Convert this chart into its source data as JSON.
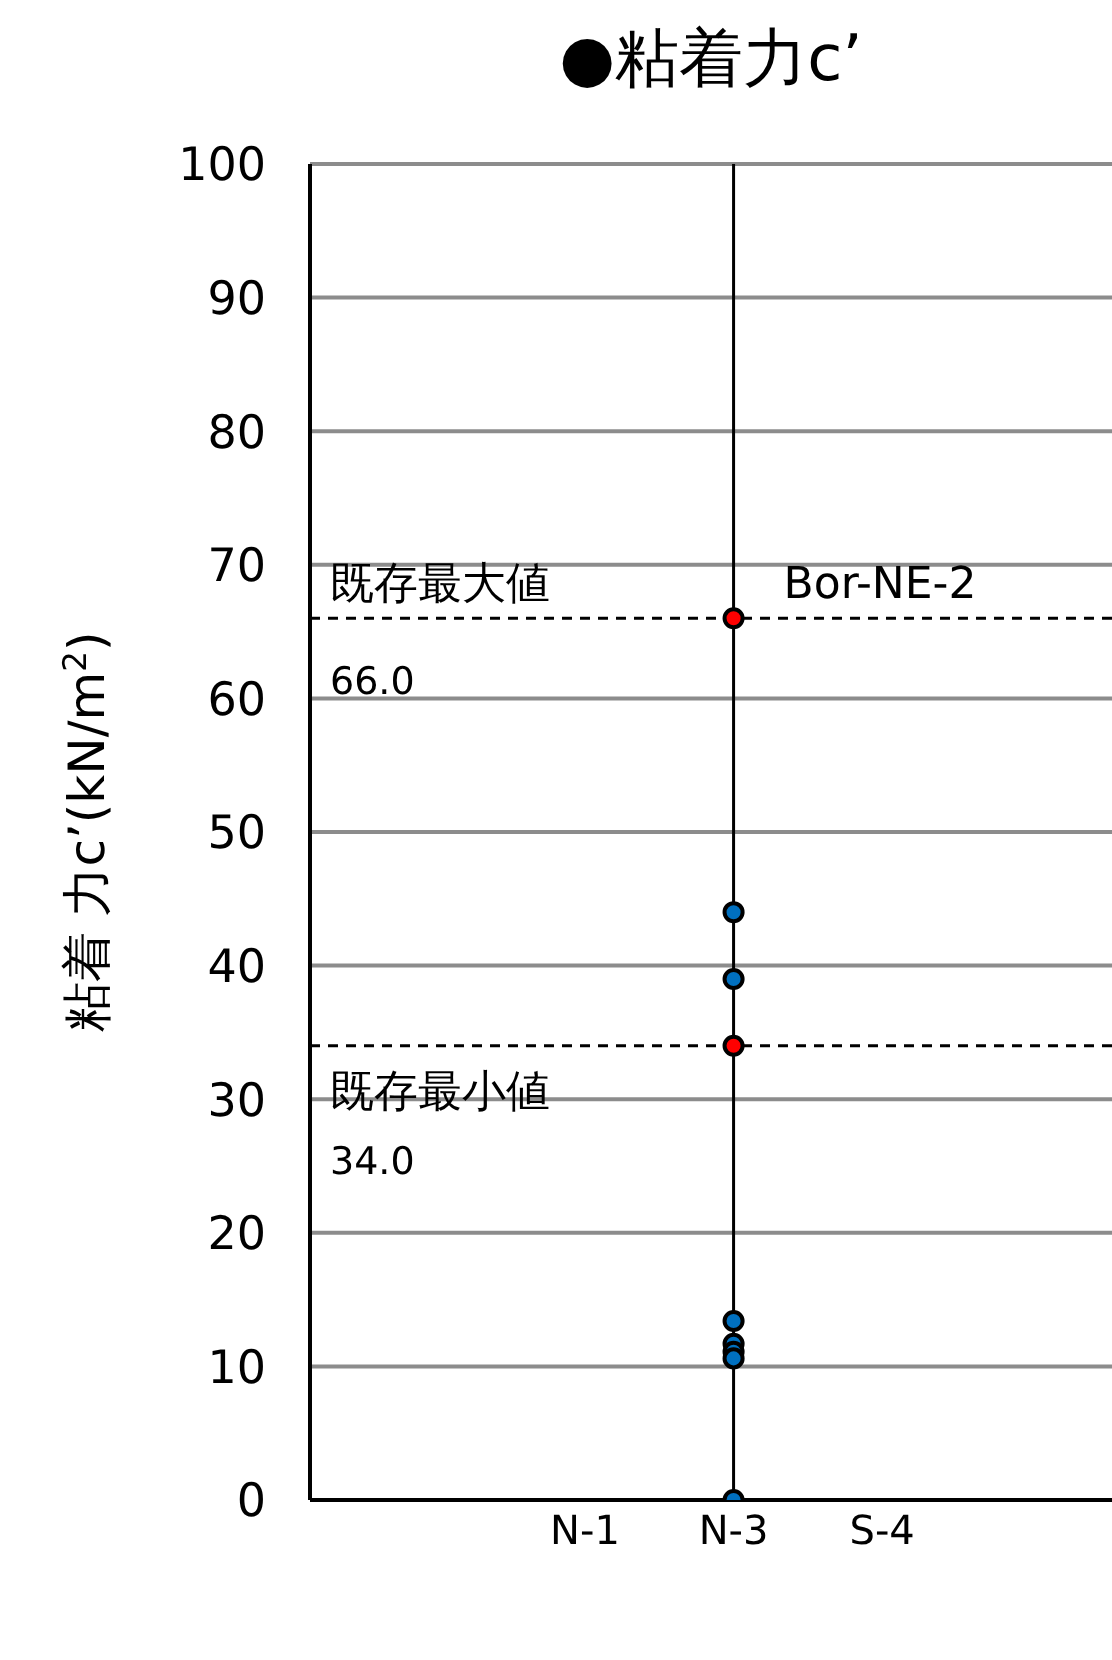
{
  "chart_data": {
    "type": "scatter",
    "title": "●粘着力c’",
    "ylabel": "粘着 力c’(kN/m$^{2}$)",
    "categories": [
      "N-1",
      "N-3",
      "S-4"
    ],
    "series": [
      {
        "color": "#0070c0",
        "x": [
          "N-3",
          "N-3",
          "N-3",
          "N-3",
          "N-3",
          "N-3",
          "N-3"
        ],
        "values": [
          44,
          39,
          13.4,
          11.7,
          11.1,
          10.6,
          0
        ]
      },
      {
        "color": "#ff0000",
        "x": [
          "N-3",
          "N-3"
        ],
        "values": [
          66,
          34
        ]
      }
    ],
    "ylim": [
      0,
      100
    ],
    "yticks": [
      0,
      10,
      20,
      30,
      40,
      50,
      60,
      70,
      80,
      90,
      100
    ],
    "grid": "y",
    "legend": false,
    "marker": "circle",
    "ref_lines": [
      {
        "axis": "y",
        "value": 66,
        "label": "既存最大値",
        "color": "#000000",
        "line_style": "dashed"
      },
      {
        "axis": "y",
        "value": 34,
        "label": "既存最小値",
        "color": "#000000",
        "line_style": "dashed"
      },
      {
        "axis": "x",
        "value": "N-3",
        "color": "#000000",
        "line_style": "solid"
      }
    ],
    "annotations": [
      {
        "text": "66.0",
        "y": 66
      },
      {
        "text": "34.0",
        "y": 34
      },
      {
        "text": "Bor-NE-2",
        "x": "N-3",
        "y": 66
      }
    ]
  }
}
